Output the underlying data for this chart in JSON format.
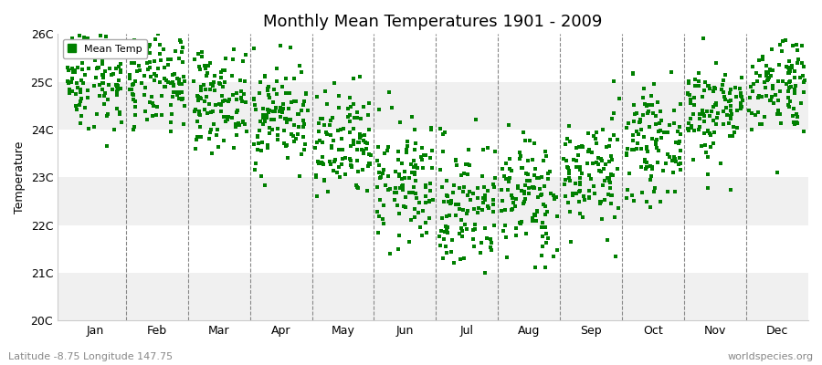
{
  "title": "Monthly Mean Temperatures 1901 - 2009",
  "ylabel": "Temperature",
  "subtitle_left": "Latitude -8.75 Longitude 147.75",
  "subtitle_right": "worldspecies.org",
  "ylim": [
    20,
    26
  ],
  "ytick_labels": [
    "20C",
    "21C",
    "22C",
    "23C",
    "24C",
    "25C",
    "26C"
  ],
  "ytick_values": [
    20,
    21,
    22,
    23,
    24,
    25,
    26
  ],
  "months": [
    "Jan",
    "Feb",
    "Mar",
    "Apr",
    "May",
    "Jun",
    "Jul",
    "Aug",
    "Sep",
    "Oct",
    "Nov",
    "Dec"
  ],
  "marker_color": "#008000",
  "marker_size": 2.5,
  "legend_label": "Mean Temp",
  "bg_color": "#ffffff",
  "band_colors": [
    "#f0f0f0",
    "#ffffff"
  ],
  "n_years": 109,
  "monthly_means": [
    25.1,
    24.95,
    24.65,
    24.3,
    23.6,
    22.85,
    22.4,
    22.6,
    23.1,
    23.7,
    24.4,
    25.0
  ],
  "monthly_stds": [
    0.55,
    0.5,
    0.5,
    0.55,
    0.6,
    0.65,
    0.7,
    0.65,
    0.6,
    0.55,
    0.55,
    0.55
  ],
  "seed": 42
}
